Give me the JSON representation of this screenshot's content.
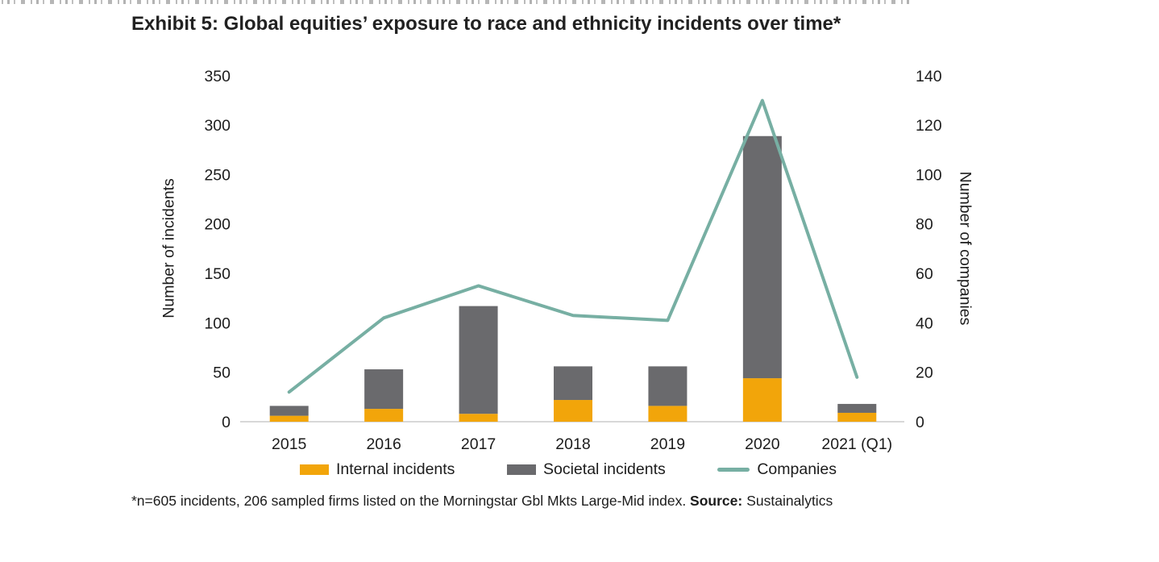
{
  "page": {
    "title": "Exhibit 5: Global equities’ exposure to race and ethnicity incidents over time*",
    "footnote": {
      "prefix": "*n=605 incidents, 206 sampled firms listed on the Morningstar Gbl Mkts Large-Mid index. ",
      "source_label": "Source:",
      "source_value": "Sustainalytics"
    }
  },
  "chart_data": {
    "type": "bar",
    "subtype": "stacked bars with overlaid line, dual y-axes",
    "title": "Exhibit 5: Global equities’ exposure to race and ethnicity incidents over time*",
    "categories": [
      "2015",
      "2016",
      "2017",
      "2018",
      "2019",
      "2020",
      "2021 (Q1)"
    ],
    "series": [
      {
        "name": "Internal incidents",
        "render": "bar",
        "stacked": true,
        "axis": "left",
        "color": "#F2A50A",
        "values": [
          6,
          13,
          8,
          22,
          16,
          44,
          9
        ]
      },
      {
        "name": "Societal incidents",
        "render": "bar",
        "stacked": true,
        "axis": "left",
        "color": "#6A6A6D",
        "values": [
          10,
          40,
          109,
          34,
          40,
          245,
          9
        ]
      },
      {
        "name": "Companies",
        "render": "line",
        "axis": "right",
        "color": "#77AFA3",
        "values": [
          12,
          42,
          55,
          43,
          41,
          130,
          18
        ]
      }
    ],
    "stacked_totals": [
      16,
      53,
      117,
      56,
      56,
      289,
      18
    ],
    "left_axis": {
      "label": "Number of incidents",
      "min": 0,
      "max": 350,
      "tick_step": 50,
      "ticks": [
        0,
        50,
        100,
        150,
        200,
        250,
        300,
        350
      ]
    },
    "right_axis": {
      "label": "Number of companies",
      "min": 0,
      "max": 140,
      "tick_step": 20,
      "ticks": [
        0,
        20,
        40,
        60,
        80,
        100,
        120,
        140
      ]
    },
    "grid": false,
    "legend_position": "bottom"
  }
}
